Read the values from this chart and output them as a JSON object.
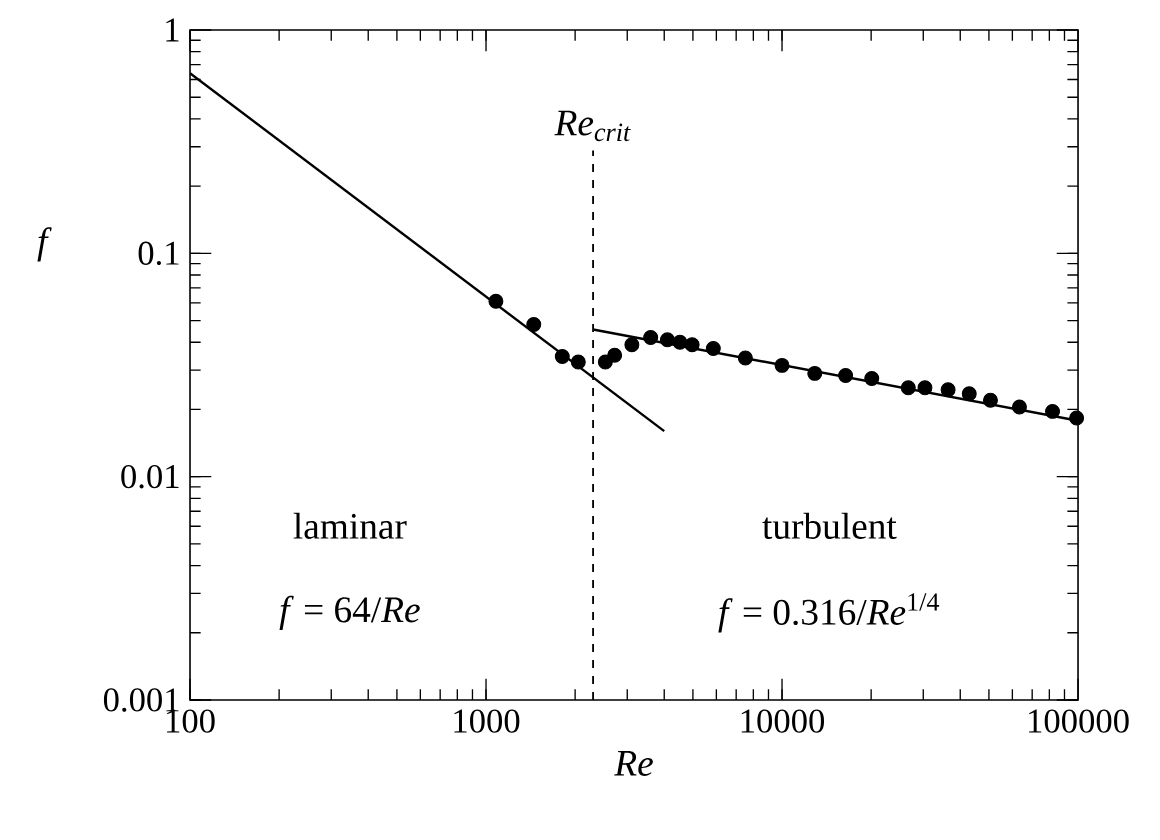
{
  "chart_data": {
    "type": "line",
    "xlabel": "Re",
    "ylabel": "f",
    "log": "xy",
    "grid": false,
    "xlim": [
      100,
      100000
    ],
    "ylim": [
      0.001,
      1
    ],
    "xticks": [
      100,
      1000,
      10000,
      100000
    ],
    "yticks": [
      0.001,
      0.01,
      0.1,
      1
    ],
    "series": [
      {
        "color": "#000000",
        "line_style": "solid",
        "marker": "none",
        "x": [
          100,
          4000
        ],
        "values": [
          0.64,
          0.016
        ]
      },
      {
        "color": "#000000",
        "line_style": "solid",
        "marker": "none",
        "x": [
          2300,
          100000
        ],
        "values": [
          0.0456,
          0.0178
        ]
      },
      {
        "type": "scatter",
        "color": "#000000",
        "marker": "circle",
        "x": [
          1080,
          1450,
          1810,
          2050,
          2530,
          2720,
          3110,
          3600,
          4100,
          4520,
          4970,
          5860,
          7520,
          10000,
          12900,
          16400,
          20100,
          26700,
          30400,
          36400,
          42900,
          50600,
          63400,
          82000,
          98900
        ],
        "values": [
          0.061,
          0.048,
          0.0345,
          0.0326,
          0.0326,
          0.035,
          0.039,
          0.042,
          0.041,
          0.04,
          0.039,
          0.0375,
          0.034,
          0.0315,
          0.029,
          0.0284,
          0.0275,
          0.025,
          0.025,
          0.0245,
          0.0235,
          0.022,
          0.0205,
          0.0196,
          0.0183
        ]
      }
    ],
    "ref_lines": [
      {
        "axis": "x",
        "value": 2300,
        "label": "Re$_{crit}$",
        "line_style": "dashed"
      }
    ],
    "annotations": [
      "laminar",
      "*f* = 64/*Re*",
      "turbulent",
      "*f* = 0.316/*Re*$^{1/4}$"
    ]
  }
}
